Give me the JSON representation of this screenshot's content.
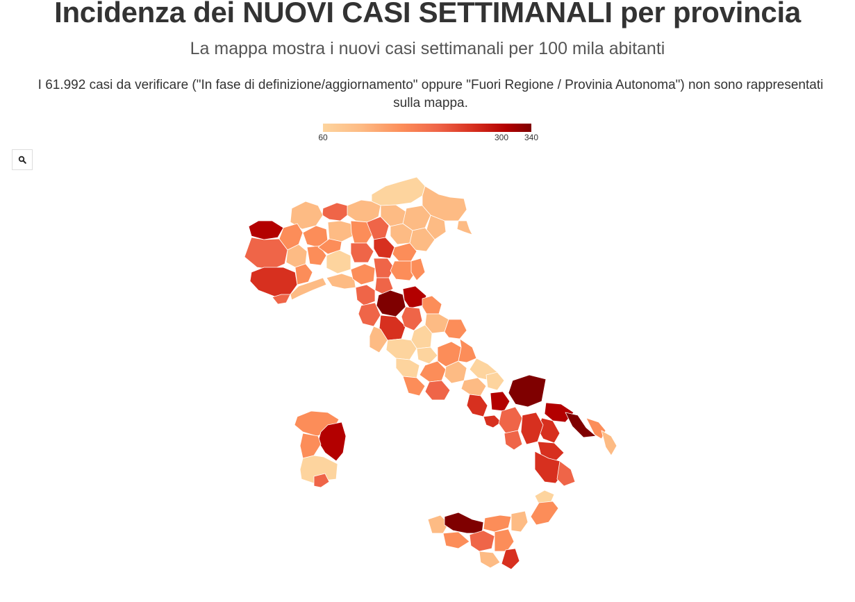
{
  "header": {
    "title": "Incidenza dei NUOVI CASI SETTIMANALI per provincia",
    "subtitle": "La mappa mostra i nuovi casi settimanali per 100 mila abitanti",
    "note": "I 61.992 casi da verificare (\"In fase di definizione/aggiornamento\" oppure \"Fuori Regione / Provinia Autonoma\") non sono rappresentati sulla mappa."
  },
  "legend": {
    "min": 60,
    "max": 340,
    "ticks": [
      {
        "value": 60,
        "label": "60"
      },
      {
        "value": 300,
        "label": "300"
      },
      {
        "value": 340,
        "label": "340"
      }
    ],
    "colors": [
      "#fdd49e",
      "#fdbb84",
      "#fc8d59",
      "#ef6548",
      "#d7301f",
      "#b30000",
      "#7f0000"
    ]
  },
  "controls": {
    "zoom_icon": "search-icon"
  }
}
